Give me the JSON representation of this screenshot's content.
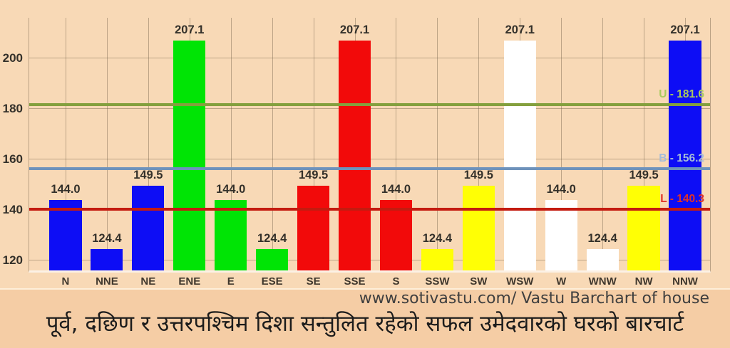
{
  "chart_data": {
    "type": "bar",
    "title": "",
    "xlabel": "",
    "ylabel": "",
    "categories": [
      "N",
      "NNE",
      "NE",
      "ENE",
      "E",
      "ESE",
      "SE",
      "SSE",
      "S",
      "SSW",
      "SW",
      "WSW",
      "W",
      "WNW",
      "NW",
      "NNW"
    ],
    "values": [
      144.0,
      124.4,
      149.5,
      207.1,
      144.0,
      124.4,
      149.5,
      207.1,
      144.0,
      124.4,
      149.5,
      207.1,
      144.0,
      124.4,
      149.5,
      207.1
    ],
    "bar_colors": [
      "#0d0df5",
      "#0d0df5",
      "#0d0df5",
      "#00e405",
      "#00e405",
      "#00e405",
      "#f20a0a",
      "#f20a0a",
      "#f20a0a",
      "#ffff05",
      "#ffff05",
      "#ffffff",
      "#ffffff",
      "#ffffff",
      "#ffff05",
      "#0d0df5"
    ],
    "yticks": [
      120,
      140,
      160,
      180,
      200
    ],
    "ylim": [
      116,
      216
    ],
    "grid": true,
    "legend": "none",
    "value_labels_shown": true,
    "reference_lines": [
      {
        "label": "U - 181.6",
        "value": 181.6,
        "line_color": "#84a03e",
        "label_color": "#a9cb5e"
      },
      {
        "label": "B - 156.2",
        "value": 156.2,
        "line_color": "#6e92bb",
        "label_color": "#a6bcd8"
      },
      {
        "label": "L - 140.3",
        "value": 140.3,
        "line_color": "#c41b10",
        "label_color": "#e03128"
      }
    ]
  },
  "footer": {
    "website_line": "www.sotivastu.com/ Vastu Barchart of house",
    "caption": "पूर्व, दछिण र उत्तरपश्चिम दिशा सन्तुलित रहेको सफल उमेदवारको घरको बारचार्ट"
  },
  "colors": {
    "chart_background": "#f8d9b6",
    "footer_band_background": "#f5cda5",
    "grid_line": "rgba(100,84,62,0.40)",
    "axis_text": "#33302a",
    "url_text": "#3f3f3f",
    "caption_text": "#1c1c1c"
  }
}
